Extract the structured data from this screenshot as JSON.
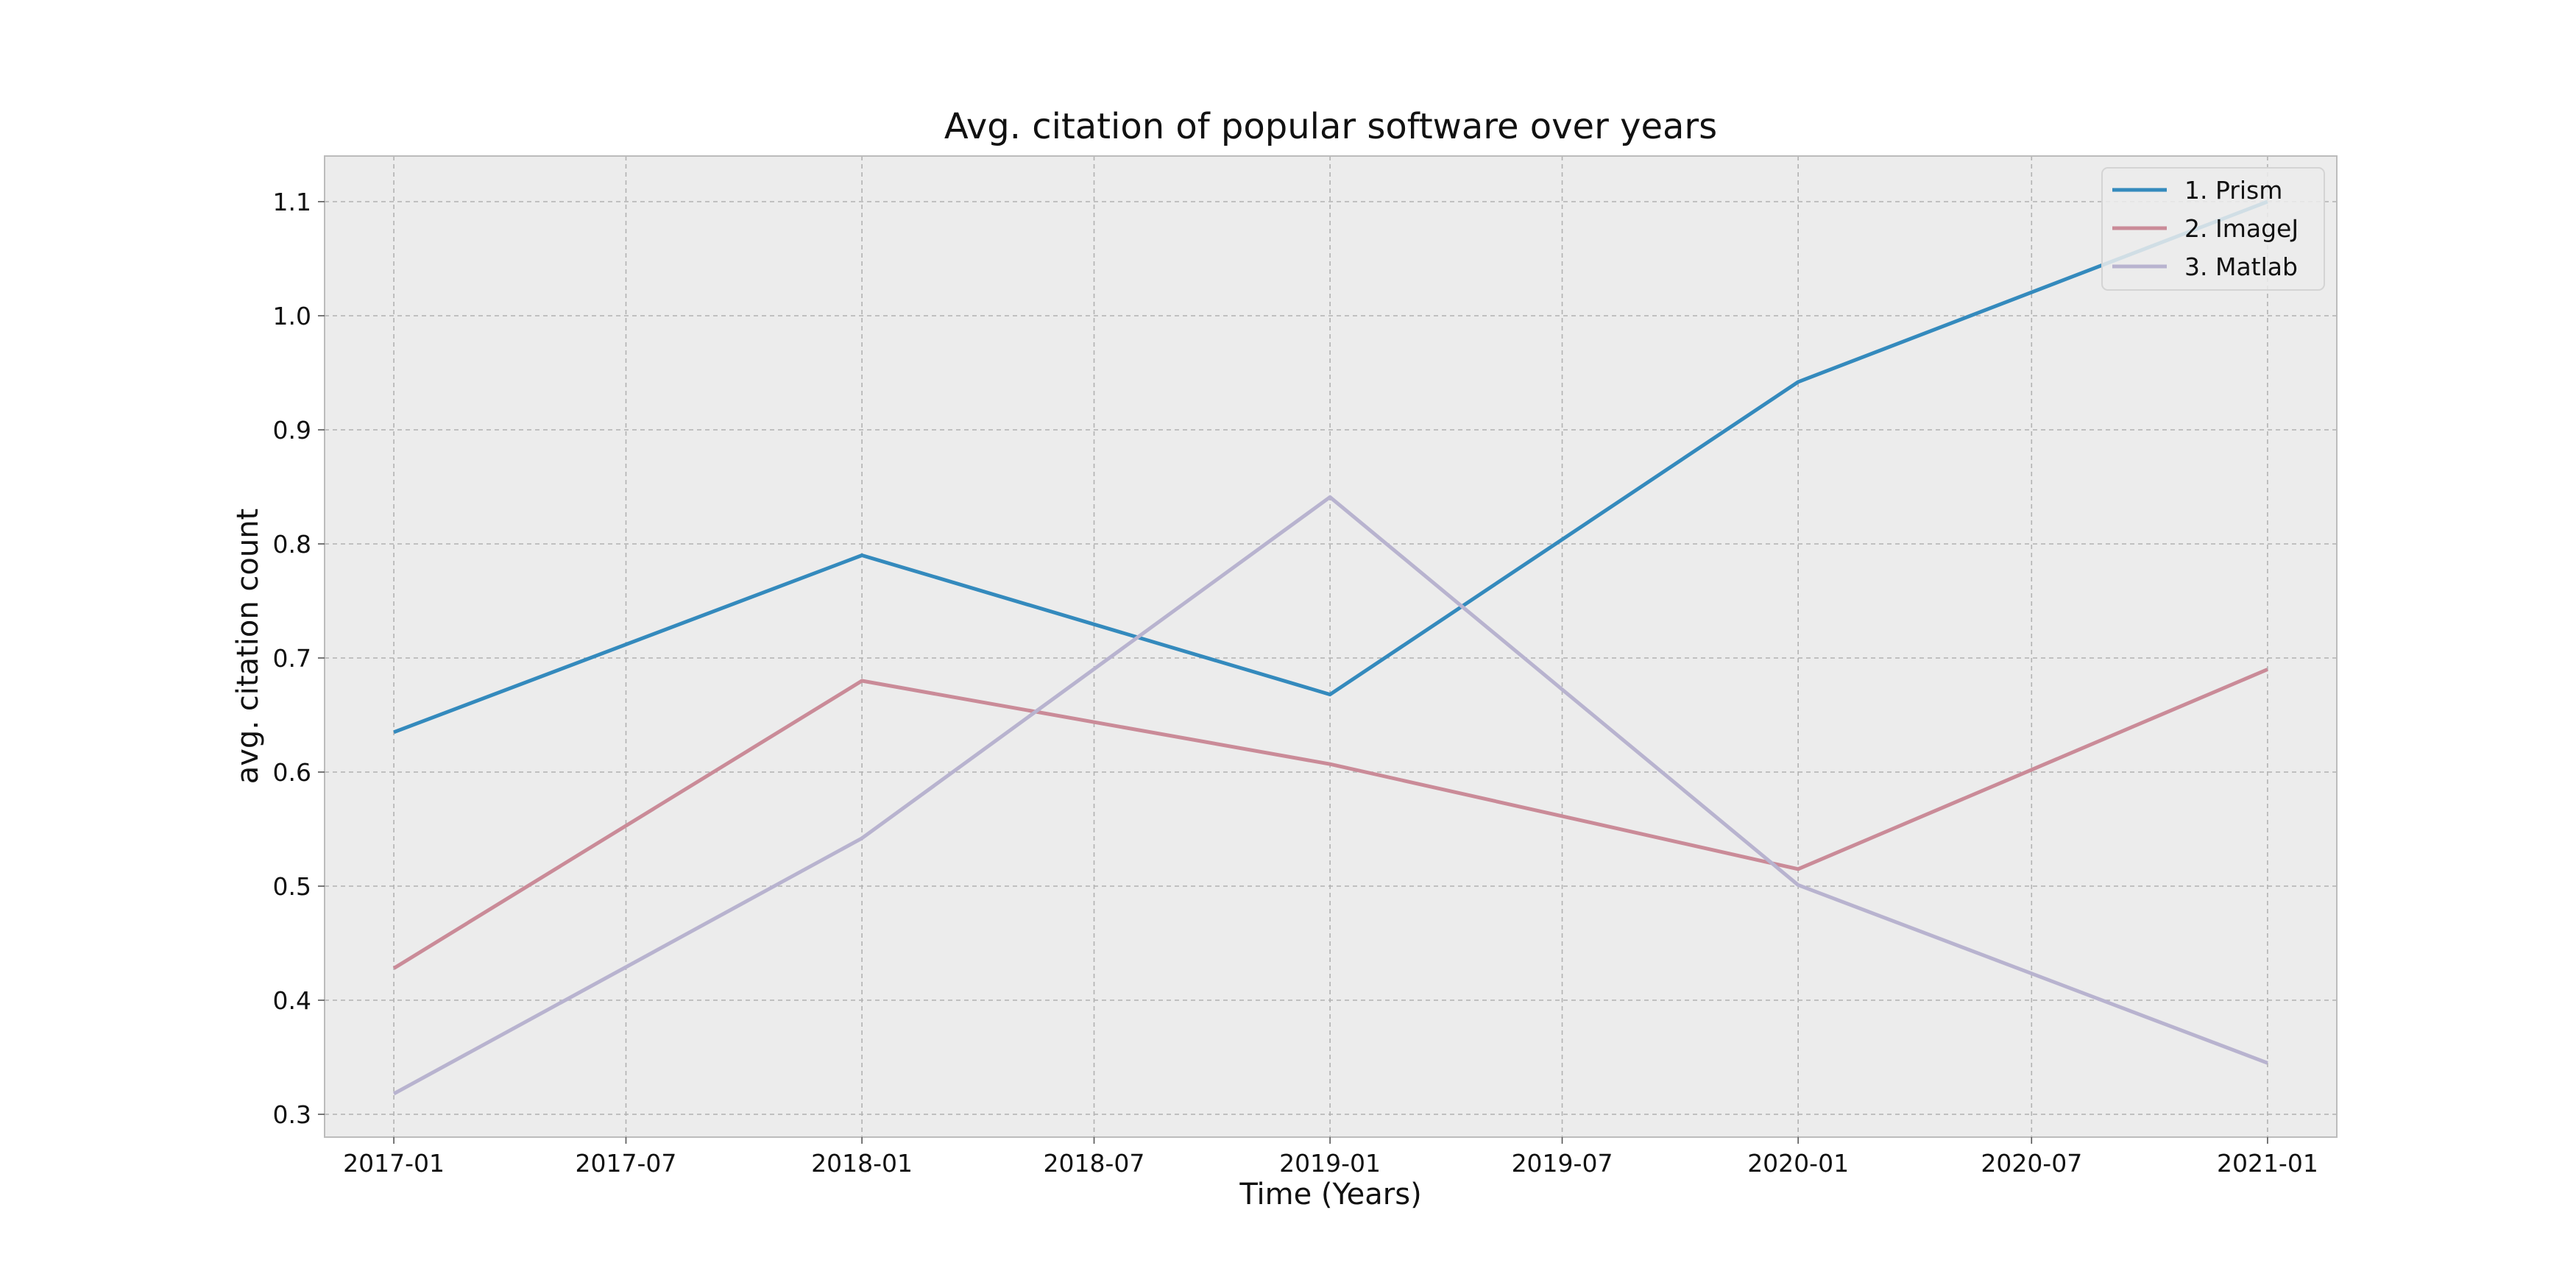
{
  "chart_data": {
    "type": "line",
    "title": "Avg. citation of popular software over years",
    "xlabel": "Time (Years)",
    "ylabel": "avg.  citation count",
    "x": [
      "2017-01",
      "2018-01",
      "2019-01",
      "2020-01",
      "2021-01"
    ],
    "x_ticks": [
      "2017-01",
      "2017-07",
      "2018-01",
      "2018-07",
      "2019-01",
      "2019-07",
      "2020-01",
      "2020-07",
      "2021-01"
    ],
    "y_ticks": [
      "0.3",
      "0.4",
      "0.5",
      "0.6",
      "0.7",
      "0.8",
      "0.9",
      "1.0",
      "1.1"
    ],
    "ylim": [
      0.28,
      1.14
    ],
    "xlim": [
      "2016-11-08",
      "2021-02-24"
    ],
    "grid": true,
    "legend_position": "top-right",
    "series": [
      {
        "name": "1. Prism",
        "color": "#348abd",
        "values": [
          0.635,
          0.79,
          0.668,
          0.942,
          1.1
        ]
      },
      {
        "name": "2. ImageJ",
        "color": "#ca8b98",
        "values": [
          0.428,
          0.68,
          0.607,
          0.515,
          0.69
        ]
      },
      {
        "name": "3. Matlab",
        "color": "#b8b3cf",
        "values": [
          0.318,
          0.542,
          0.841,
          0.501,
          0.345
        ]
      }
    ]
  }
}
